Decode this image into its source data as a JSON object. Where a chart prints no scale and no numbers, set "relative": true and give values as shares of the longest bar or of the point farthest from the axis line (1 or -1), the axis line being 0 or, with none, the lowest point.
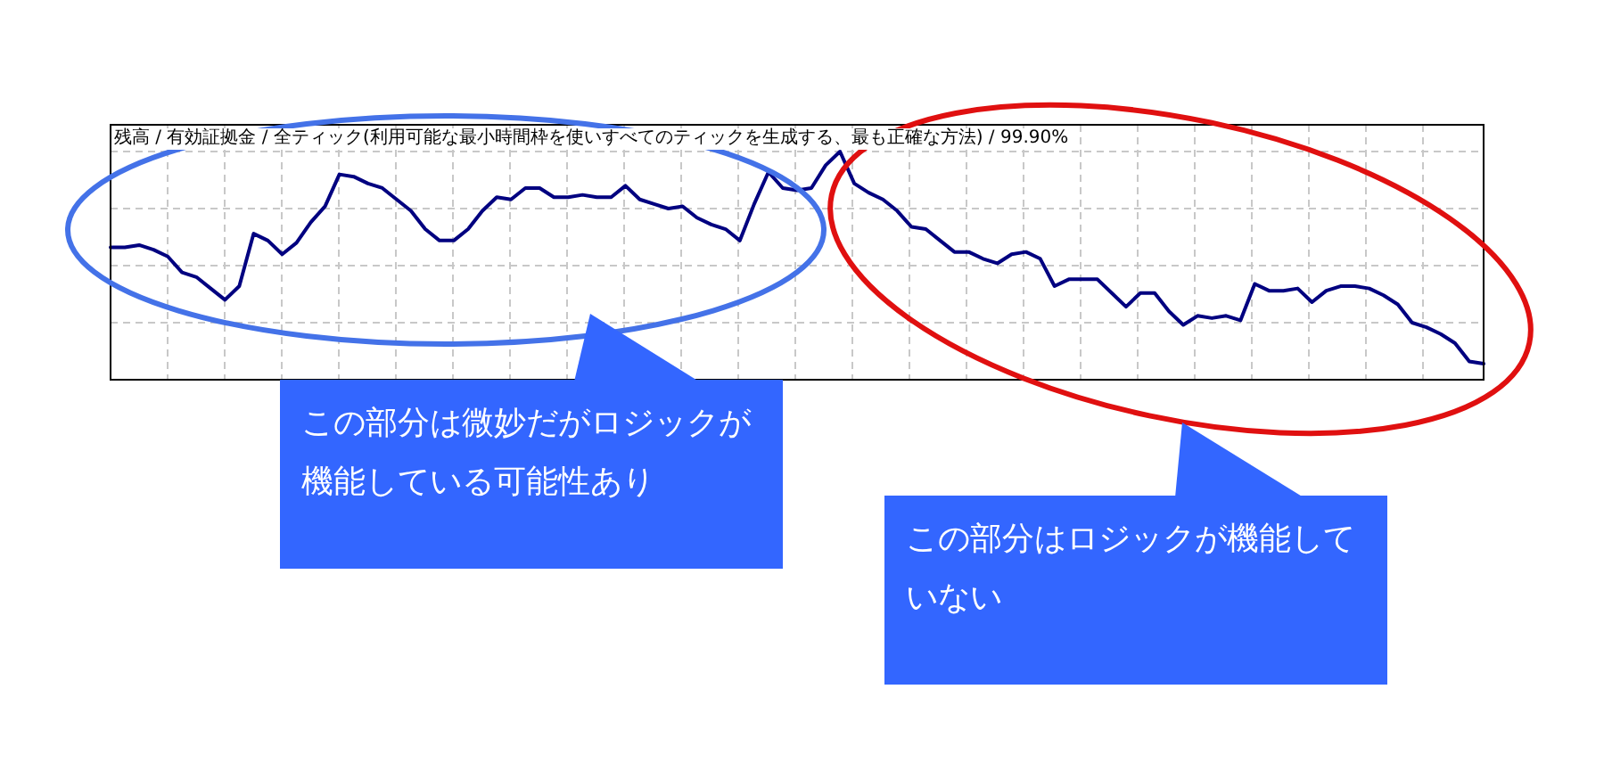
{
  "chart_data": {
    "type": "line",
    "relative": true,
    "title": "残高 / 有効証拠金 / 全ティック(利用可能な最小時間枠を使いすべてのティックを生成する、最も正確な方法) / 99.90%",
    "grid": true,
    "marker": "none",
    "line_style": "solid",
    "categories": [
      null,
      null,
      null,
      null,
      null,
      null,
      null,
      null,
      null,
      null,
      null,
      null,
      null,
      null,
      null,
      null,
      null,
      null,
      null,
      null,
      null,
      null,
      null,
      null,
      null,
      null,
      null,
      null,
      null,
      null,
      null,
      null,
      null,
      null,
      null,
      null,
      null,
      null,
      null,
      null,
      null,
      null,
      null,
      null,
      null,
      null,
      null,
      null,
      null,
      null,
      null,
      null,
      null,
      null,
      null,
      null,
      null,
      null,
      null,
      null,
      null,
      null,
      null,
      null,
      null,
      null,
      null,
      null,
      null,
      null,
      null,
      null,
      null,
      null,
      null,
      null,
      null,
      null,
      null,
      null,
      null,
      null,
      null,
      null,
      null,
      null,
      null,
      null,
      null,
      null,
      null,
      null,
      null,
      null,
      null,
      null,
      null
    ],
    "series": [
      {
        "color": "#000080",
        "values": [
          0.58,
          0.58,
          0.59,
          0.57,
          0.54,
          0.47,
          0.45,
          0.4,
          0.35,
          0.41,
          0.64,
          0.61,
          0.55,
          0.6,
          0.69,
          0.76,
          0.9,
          0.89,
          0.86,
          0.84,
          0.79,
          0.74,
          0.66,
          0.61,
          0.61,
          0.66,
          0.74,
          0.8,
          0.79,
          0.84,
          0.84,
          0.8,
          0.8,
          0.81,
          0.8,
          0.8,
          0.85,
          0.79,
          0.77,
          0.75,
          0.76,
          0.71,
          0.68,
          0.66,
          0.61,
          0.77,
          0.91,
          0.84,
          0.83,
          0.84,
          0.94,
          1.0,
          0.86,
          0.82,
          0.79,
          0.74,
          0.67,
          0.66,
          0.61,
          0.56,
          0.56,
          0.53,
          0.51,
          0.55,
          0.56,
          0.53,
          0.41,
          0.44,
          0.44,
          0.44,
          0.38,
          0.32,
          0.38,
          0.38,
          0.3,
          0.24,
          0.28,
          0.27,
          0.28,
          0.26,
          0.42,
          0.39,
          0.39,
          0.4,
          0.34,
          0.39,
          0.41,
          0.41,
          0.4,
          0.37,
          0.33,
          0.25,
          0.23,
          0.2,
          0.16,
          0.08,
          0.07
        ]
      }
    ],
    "annotations": [
      "この部分は微妙だがロジックが機能している可能性あり",
      "この部分はロジックが機能していない"
    ]
  }
}
